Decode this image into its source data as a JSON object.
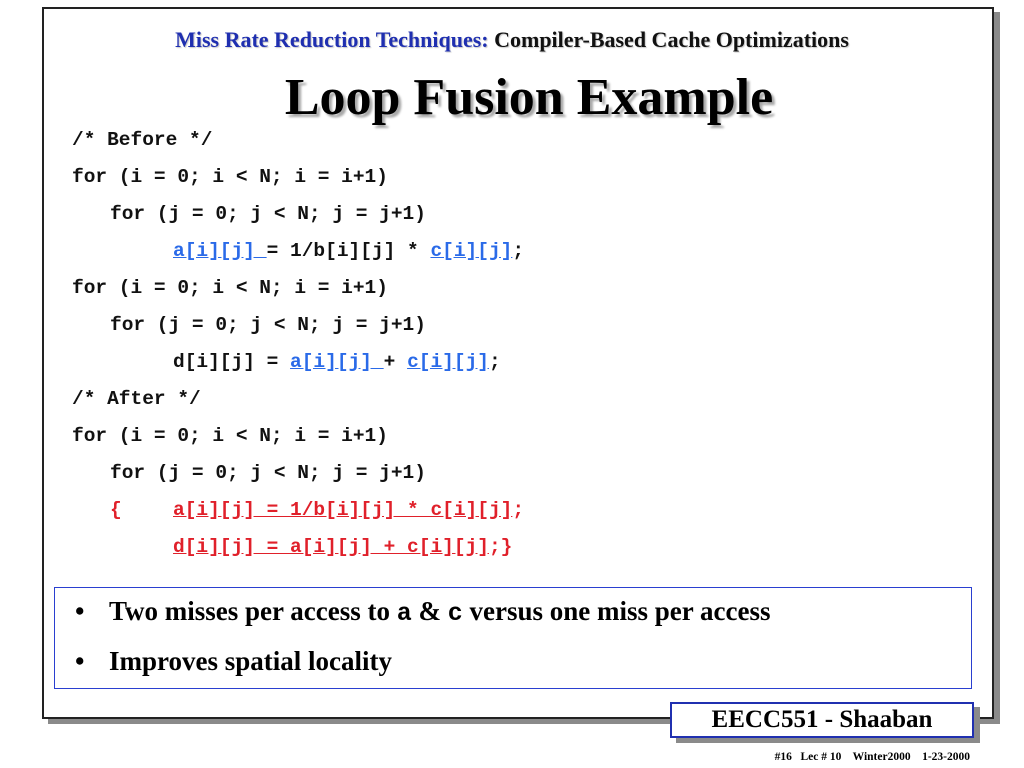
{
  "header": {
    "lead": "Miss Rate Reduction Techniques:",
    "rest": "Compiler-Based Cache Optimizations"
  },
  "title": "Loop Fusion Example",
  "code": {
    "before_comment": "/* Before */",
    "outer_for": "for (i = 0; i < N; i = i+1)",
    "inner_for": "for (j = 0; j < N; j = j+1)",
    "stmt1_a": "a[i][j] ",
    "stmt1_mid": "= 1/b[i][j] * ",
    "stmt1_c": "c[i][j]",
    "stmt1_end": ";",
    "stmt2_start": "d[i][j] = ",
    "stmt2_a": "a[i][j] ",
    "stmt2_mid": "+ ",
    "stmt2_c": "c[i][j]",
    "stmt2_end": ";",
    "after_comment": "/* After */",
    "fused_brace": "{",
    "fused_stmt1": "a[i][j] = 1/b[i][j] * c[i][j]",
    "fused_stmt1_end": ";",
    "fused_stmt2": "d[i][j] = a[i][j] + c[i][j]",
    "fused_stmt2_end": ";}"
  },
  "notes": {
    "bullet_glyph": "•",
    "b1_pre": "Two misses per access to ",
    "b1_a": "a",
    "b1_amp": " & ",
    "b1_c": "c",
    "b1_post": " versus one miss per access",
    "b2": "Improves spatial locality"
  },
  "badge": "EECC551 - Shaaban",
  "footer": "#16   Lec # 10    Winter2000    1-23-2000",
  "colors": {
    "header_blue": "#1f2fb0",
    "link_blue": "#2a6ae8",
    "red": "#e0202a"
  }
}
